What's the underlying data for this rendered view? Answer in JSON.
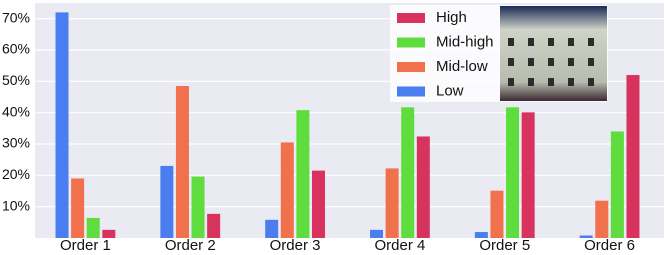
{
  "chart_data": {
    "type": "bar",
    "categories": [
      "Order 1",
      "Order 2",
      "Order 3",
      "Order 4",
      "Order 5",
      "Order 6"
    ],
    "series": [
      {
        "name": "Low",
        "color": "#4a7ef0",
        "values": [
          72,
          23,
          5.8,
          2.6,
          1.9,
          0.8
        ]
      },
      {
        "name": "Mid-low",
        "color": "#f0714b",
        "values": [
          19,
          48.5,
          30.5,
          22.2,
          15.1,
          11.9
        ]
      },
      {
        "name": "Mid-high",
        "color": "#5fdc3e",
        "values": [
          6.4,
          19.6,
          40.8,
          41.7,
          41.7,
          34
        ]
      },
      {
        "name": "High",
        "color": "#d8325f",
        "values": [
          2.6,
          7.7,
          21.5,
          32.4,
          40.1,
          52
        ]
      }
    ],
    "ylim": [
      0,
      75
    ],
    "yticks": [
      {
        "value": 10,
        "label": "10%"
      },
      {
        "value": 20,
        "label": "20%"
      },
      {
        "value": 30,
        "label": "30%"
      },
      {
        "value": 40,
        "label": "40%"
      },
      {
        "value": 50,
        "label": "50%"
      },
      {
        "value": 60,
        "label": "60%"
      },
      {
        "value": 70,
        "label": "70%"
      }
    ],
    "grid": true,
    "legend": "upper-right"
  }
}
